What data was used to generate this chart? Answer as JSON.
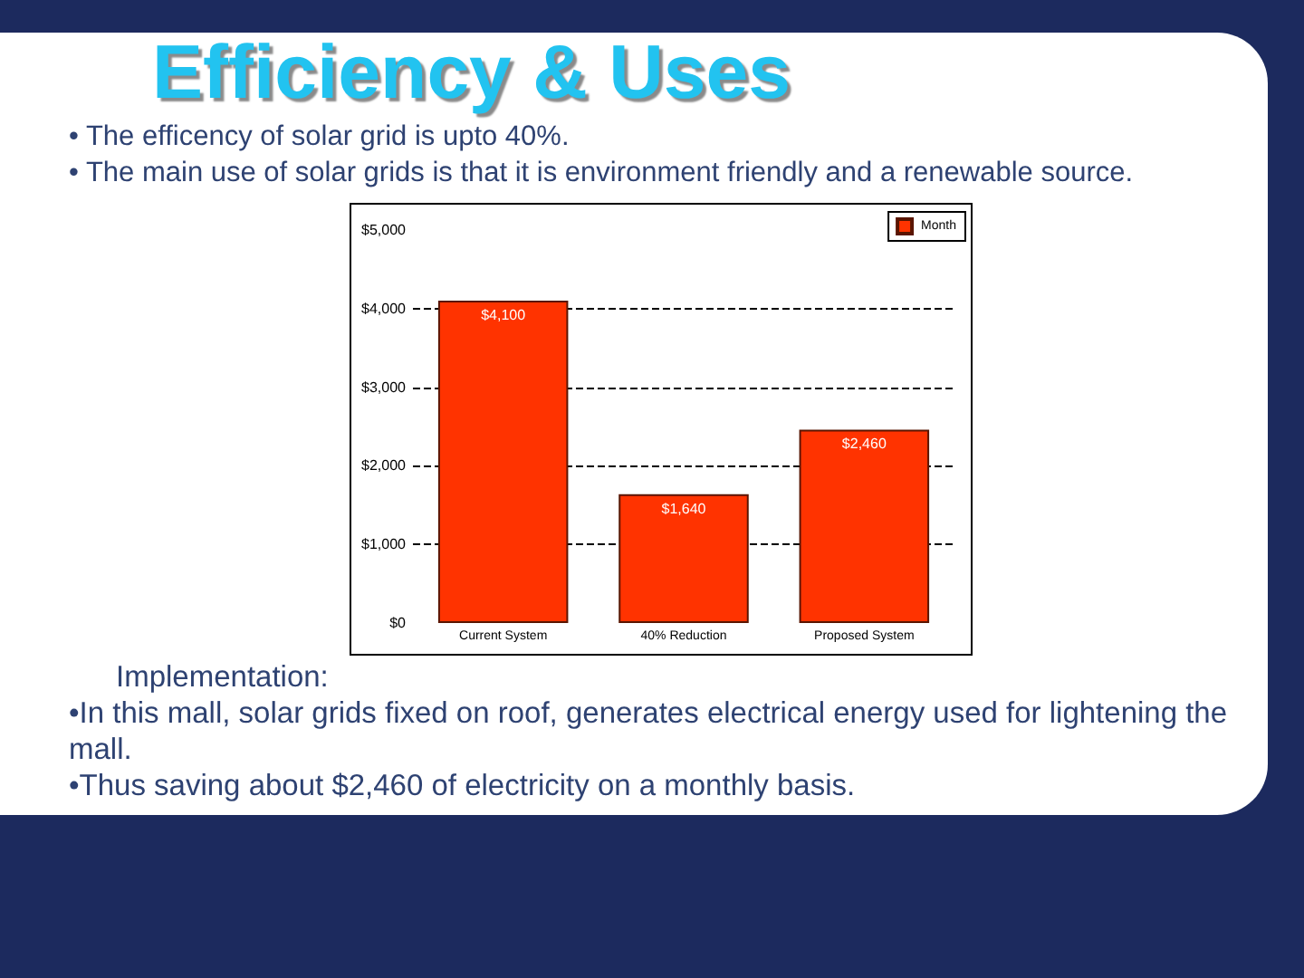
{
  "chart_data": {
    "type": "bar",
    "title": "Efficiency & Uses",
    "annotations": [
      "• The efficency of solar grid is upto 40%.",
      "• The main use of solar grids is that it is environment friendly and a renewable source.",
      "Implementation:",
      "•In this mall, solar grids fixed on roof, generates electrical energy used for lightening the mall.",
      "•Thus saving about $2,460 of electricity on a monthly basis."
    ],
    "categories": [
      "Current System",
      "40% Reduction",
      "Proposed System"
    ],
    "series": [
      {
        "name": "Month",
        "color": "#ff3300",
        "values": [
          4100,
          1640,
          2460
        ],
        "value_labels": [
          "$4,100",
          "$1,640",
          "$2,460"
        ]
      }
    ],
    "ylim": [
      0,
      5000
    ],
    "yticks": [
      {
        "value": 0,
        "label": "$0"
      },
      {
        "value": 1000,
        "label": "$1,000"
      },
      {
        "value": 2000,
        "label": "$2,000"
      },
      {
        "value": 3000,
        "label": "$3,000"
      },
      {
        "value": 4000,
        "label": "$4,000"
      },
      {
        "value": 5000,
        "label": "$5,000"
      }
    ],
    "grid": "y",
    "legend": "top right"
  }
}
